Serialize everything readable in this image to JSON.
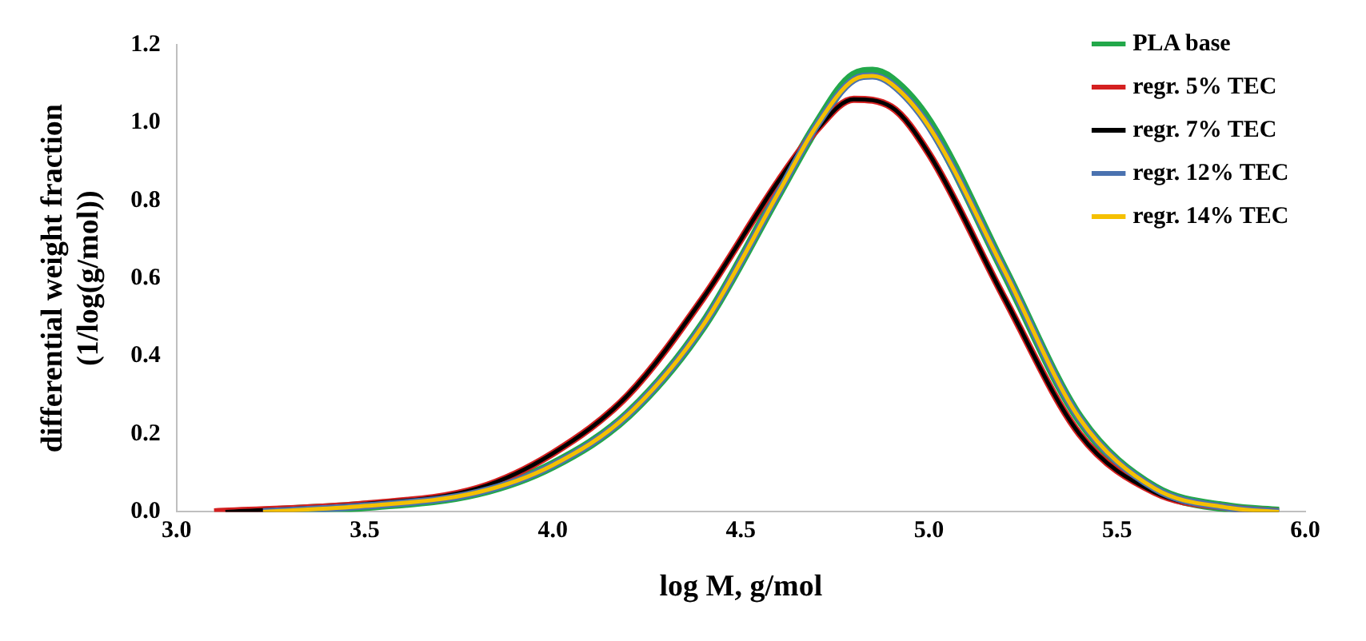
{
  "chart_data": {
    "type": "line",
    "xlabel": "log M, g/mol",
    "ylabel": "differential weight fraction (1/log(g/mol))",
    "xlim": [
      3.0,
      6.0
    ],
    "xticks": [
      {
        "value": 3,
        "label": "3.0"
      },
      3.5,
      {
        "value": 4,
        "label": "4.0"
      },
      4.5,
      {
        "value": 5,
        "label": "5.0"
      },
      5.5,
      {
        "value": 6,
        "label": "6.0"
      }
    ],
    "ylim": [
      0,
      1.2
    ],
    "yticks": [
      {
        "value": 0,
        "label": "0.0"
      },
      0.2,
      0.4,
      0.6,
      0.8,
      {
        "value": 1,
        "label": "1.0"
      },
      1.2
    ],
    "grid": false,
    "legend": "top right",
    "marker": "none",
    "line_style": "solid",
    "series": [
      {
        "name": "PLA base",
        "color": "#22a84a",
        "x": [
          3.23,
          3.5,
          3.8,
          4.0,
          4.2,
          4.4,
          4.6,
          4.7,
          4.8,
          4.85,
          4.9,
          5.0,
          5.2,
          5.4,
          5.6,
          5.8,
          5.93
        ],
        "values": [
          0,
          0.015,
          0.05,
          0.12,
          0.25,
          0.48,
          0.82,
          0.99,
          1.12,
          1.13,
          1.11,
          1.0,
          0.62,
          0.24,
          0.06,
          0.01,
          0
        ]
      },
      {
        "name": "regr. 5% TEC",
        "color": "#d42020",
        "x": [
          3.1,
          3.5,
          3.8,
          4.0,
          4.2,
          4.4,
          4.6,
          4.7,
          4.8,
          4.9,
          5.0,
          5.2,
          5.4,
          5.6,
          5.8,
          5.93
        ],
        "values": [
          0,
          0.02,
          0.06,
          0.15,
          0.3,
          0.55,
          0.85,
          0.98,
          1.06,
          1.04,
          0.92,
          0.55,
          0.2,
          0.05,
          0.01,
          0
        ]
      },
      {
        "name": "regr. 7% TEC",
        "color": "#000000",
        "x": [
          3.13,
          3.5,
          3.8,
          4.0,
          4.2,
          4.4,
          4.6,
          4.7,
          4.8,
          4.9,
          5.0,
          5.2,
          5.4,
          5.6,
          5.8,
          5.93
        ],
        "values": [
          0,
          0.02,
          0.06,
          0.15,
          0.3,
          0.55,
          0.85,
          0.98,
          1.06,
          1.04,
          0.92,
          0.55,
          0.2,
          0.05,
          0.01,
          0
        ]
      },
      {
        "name": "regr. 12% TEC",
        "color": "#4a72b0",
        "x": [
          3.23,
          3.5,
          3.8,
          4.0,
          4.2,
          4.4,
          4.6,
          4.7,
          4.8,
          4.85,
          4.9,
          5.0,
          5.2,
          5.4,
          5.6,
          5.8,
          5.93
        ],
        "values": [
          0,
          0.015,
          0.05,
          0.12,
          0.25,
          0.48,
          0.82,
          0.99,
          1.11,
          1.12,
          1.1,
          0.99,
          0.62,
          0.24,
          0.06,
          0.01,
          0
        ]
      },
      {
        "name": "regr. 14% TEC",
        "color": "#f5c000",
        "x": [
          3.23,
          3.5,
          3.8,
          4.0,
          4.2,
          4.4,
          4.6,
          4.7,
          4.8,
          4.85,
          4.9,
          5.0,
          5.2,
          5.4,
          5.6,
          5.8,
          5.93
        ],
        "values": [
          0,
          0.015,
          0.05,
          0.12,
          0.25,
          0.48,
          0.82,
          0.99,
          1.11,
          1.12,
          1.1,
          0.99,
          0.62,
          0.24,
          0.06,
          0.01,
          0
        ]
      }
    ]
  }
}
